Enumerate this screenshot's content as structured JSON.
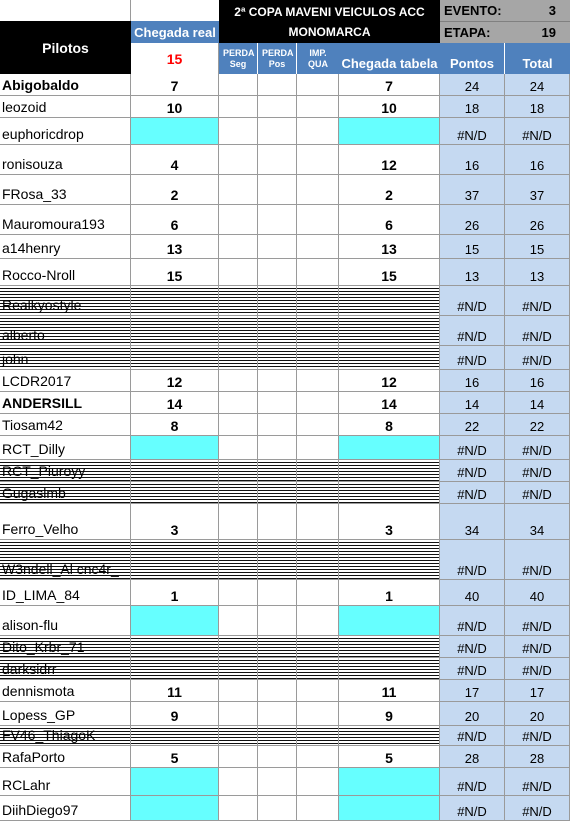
{
  "header": {
    "pilotos_label": "Pilotos",
    "title_line1": "2ª COPA MAVENI VEICULOS ACC",
    "title_line2": "MONOMARCA",
    "evento_label": "EVENTO:",
    "evento_value": "3",
    "etapa_label": "ETAPA:",
    "etapa_value": "19",
    "chegada_real_label": "Chegada real",
    "chegada_real_count": "15",
    "perda_seg_label": "PERDA Seg",
    "perda_pos_label": "PERDA Pos",
    "imp_qua_label": "IMP. QUA",
    "chegada_tabela_label": "Chegada tabela",
    "pontos_label": "Pontos",
    "total_label": "Total"
  },
  "colors": {
    "header_black": "#000000",
    "header_blue": "#4f81bd",
    "pontos_blue": "#c5d9f1",
    "missing_cyan": "#66ffff",
    "count_red": "#ff0000"
  },
  "rows": [
    {
      "name": "Abigobaldo",
      "bold": true,
      "real": "7",
      "tabela": "7",
      "pontos": "24",
      "total": "24"
    },
    {
      "name": "leozoid",
      "real": "10",
      "tabela": "10",
      "pontos": "18",
      "total": "18"
    },
    {
      "name": "euphoricdrop",
      "cyan": true,
      "real": "",
      "tabela": "",
      "pontos": "#N/D",
      "total": "#N/D"
    },
    {
      "name": "ronisouza",
      "real": "4",
      "tabela": "12",
      "pontos": "16",
      "total": "16"
    },
    {
      "name": "FRosa_33",
      "real": "2",
      "tabela": "2",
      "pontos": "37",
      "total": "37"
    },
    {
      "name": "Mauromoura193",
      "real": "6",
      "tabela": "6",
      "pontos": "26",
      "total": "26"
    },
    {
      "name": "a14henry",
      "real": "13",
      "tabela": "13",
      "pontos": "15",
      "total": "15"
    },
    {
      "name": "Rocco-Nroll",
      "real": "15",
      "tabela": "15",
      "pontos": "13",
      "total": "13"
    },
    {
      "name": "Realkyostyle",
      "struck": true,
      "real": "",
      "tabela": "",
      "pontos": "#N/D",
      "total": "#N/D"
    },
    {
      "name": "alberto",
      "struck": true,
      "real": "",
      "tabela": "",
      "pontos": "#N/D",
      "total": "#N/D"
    },
    {
      "name": "john",
      "struck": true,
      "real": "",
      "tabela": "",
      "pontos": "#N/D",
      "total": "#N/D"
    },
    {
      "name": "LCDR2017",
      "real": "12",
      "tabela": "12",
      "pontos": "16",
      "total": "16"
    },
    {
      "name": "ANDERSILL",
      "bold": true,
      "real": "14",
      "tabela": "14",
      "pontos": "14",
      "total": "14"
    },
    {
      "name": "Tiosam42",
      "real": "8",
      "tabela": "8",
      "pontos": "22",
      "total": "22"
    },
    {
      "name": "RCT_Dilly",
      "cyan": true,
      "real": "",
      "tabela": "",
      "pontos": "#N/D",
      "total": "#N/D"
    },
    {
      "name": "RCT_Piuroyy",
      "struck": true,
      "real": "",
      "tabela": "",
      "pontos": "#N/D",
      "total": "#N/D"
    },
    {
      "name": "Gugaslmb",
      "struck": true,
      "real": "",
      "tabela": "",
      "pontos": "#N/D",
      "total": "#N/D"
    },
    {
      "name": "Ferro_Velho",
      "real": "3",
      "tabela": "3",
      "pontos": "34",
      "total": "34"
    },
    {
      "name": "W3ndell_Al cnc4r_",
      "struck": true,
      "real": "",
      "tabela": "",
      "pontos": "#N/D",
      "total": "#N/D"
    },
    {
      "name": "ID_LIMA_84",
      "real": "1",
      "tabela": "1",
      "pontos": "40",
      "total": "40"
    },
    {
      "name": "alison-flu",
      "cyan": true,
      "real": "",
      "tabela": "",
      "pontos": "#N/D",
      "total": "#N/D"
    },
    {
      "name": "Dito_Krbr_71",
      "struck": true,
      "real": "",
      "tabela": "",
      "pontos": "#N/D",
      "total": "#N/D"
    },
    {
      "name": "darksidrr",
      "struck": true,
      "real": "",
      "tabela": "",
      "pontos": "#N/D",
      "total": "#N/D"
    },
    {
      "name": "dennismota",
      "real": "11",
      "tabela": "11",
      "pontos": "17",
      "total": "17"
    },
    {
      "name": "Lopess_GP",
      "real": "9",
      "tabela": "9",
      "pontos": "20",
      "total": "20"
    },
    {
      "name": "FV46_ThiagoK",
      "struck": true,
      "real": "",
      "tabela": "",
      "pontos": "#N/D",
      "total": "#N/D"
    },
    {
      "name": "RafaPorto",
      "real": "5",
      "tabela": "5",
      "pontos": "28",
      "total": "28"
    },
    {
      "name": "RCLahr",
      "cyan": true,
      "real": "",
      "tabela": "",
      "pontos": "#N/D",
      "total": "#N/D"
    },
    {
      "name": "DiihDiego97",
      "cyan": true,
      "real": "",
      "tabela": "",
      "pontos": "#N/D",
      "total": "#N/D"
    }
  ]
}
